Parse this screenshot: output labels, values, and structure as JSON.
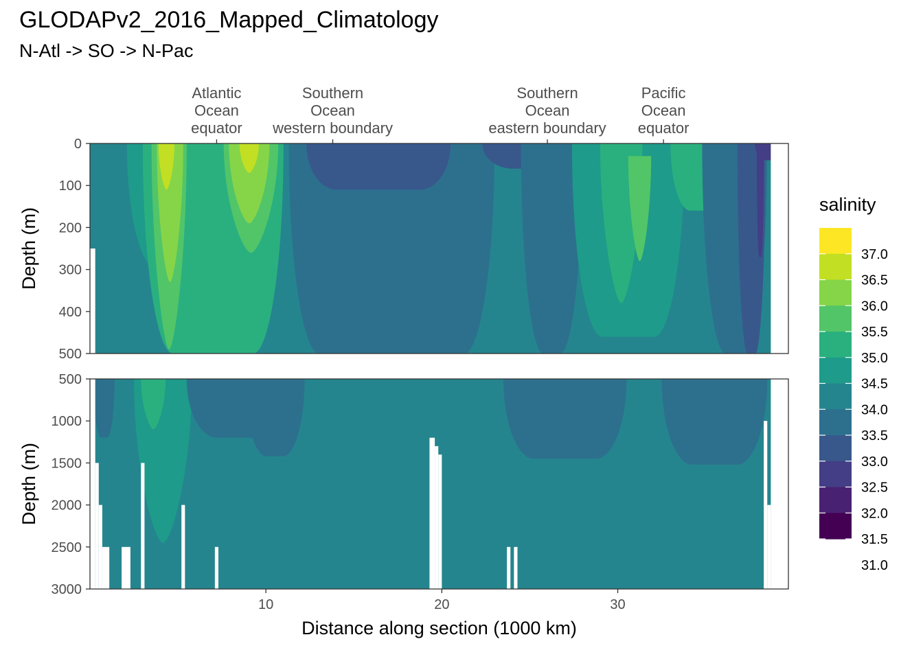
{
  "title": "GLODAPv2_2016_Mapped_Climatology",
  "subtitle": "N-Atl -> SO -> N-Pac",
  "chart_data": {
    "type": "heatmap",
    "title": "GLODAPv2_2016_Mapped_Climatology",
    "subtitle": "N-Atl -> SO -> N-Pac",
    "xlabel": "Distance along section (1000 km)",
    "ylabel": "Depth (m)",
    "xlim": [
      0,
      39.7
    ],
    "x_ticks": [
      10,
      20,
      30
    ],
    "x_tick_labels": [
      "10",
      "20",
      "30"
    ],
    "top_annotations": [
      {
        "x": 7.2,
        "lines": [
          "Atlantic",
          "Ocean",
          "equator"
        ]
      },
      {
        "x": 13.8,
        "lines": [
          "Southern",
          "Ocean",
          "western boundary"
        ]
      },
      {
        "x": 26.0,
        "lines": [
          "Southern",
          "Ocean",
          "eastern boundary"
        ]
      },
      {
        "x": 32.6,
        "lines": [
          "Pacific",
          "Ocean",
          "equator"
        ]
      }
    ],
    "panels": [
      {
        "name": "upper",
        "ylim": [
          0,
          500
        ],
        "y_ticks": [
          0,
          100,
          200,
          300,
          400,
          500
        ],
        "y_tick_labels": [
          "0",
          "100",
          "200",
          "300",
          "400",
          "500"
        ]
      },
      {
        "name": "lower",
        "ylim": [
          500,
          3000
        ],
        "y_ticks": [
          500,
          1000,
          1500,
          2000,
          2500,
          3000
        ],
        "y_tick_labels": [
          "500",
          "1000",
          "1500",
          "2000",
          "2500",
          "3000"
        ]
      }
    ],
    "legend": {
      "title": "salinity",
      "placement": "right",
      "breaks": [
        "37.0",
        "36.5",
        "36.0",
        "35.5",
        "35.0",
        "34.5",
        "34.0",
        "33.5",
        "33.0",
        "32.5",
        "32.0",
        "31.5",
        "31.0"
      ],
      "colors": [
        "#fde725",
        "#c2df23",
        "#86d549",
        "#52c569",
        "#2ab07f",
        "#1e9b8a",
        "#25858e",
        "#2d708e",
        "#38588c",
        "#433e85",
        "#482173",
        "#440154"
      ]
    },
    "features": {
      "upper": [
        {
          "kind": "band",
          "level": 35.0,
          "x": [
            2.1,
            10.3
          ],
          "depth": [
            0,
            300
          ],
          "depth_span": 300
        },
        {
          "kind": "band",
          "level": 35.5,
          "x": [
            3.0,
            11.0
          ],
          "depth": [
            0,
            500
          ],
          "depth_span": 500
        },
        {
          "kind": "tongue",
          "level": 36.0,
          "x": [
            3.5,
            5.5
          ],
          "depth": [
            0,
            490
          ],
          "depth_span": 490
        },
        {
          "kind": "tongue",
          "level": 36.5,
          "x": [
            3.8,
            5.3
          ],
          "depth": [
            0,
            330
          ],
          "depth_span": 330
        },
        {
          "kind": "core",
          "level": 37.0,
          "x": [
            3.9,
            4.8
          ],
          "depth": [
            0,
            110
          ],
          "depth_span": 110
        },
        {
          "kind": "tongue",
          "level": 36.0,
          "x": [
            7.6,
            10.7
          ],
          "depth": [
            0,
            260
          ],
          "depth_span": 260
        },
        {
          "kind": "tongue",
          "level": 36.5,
          "x": [
            7.9,
            10.2
          ],
          "depth": [
            0,
            190
          ],
          "depth_span": 190
        },
        {
          "kind": "core",
          "level": 37.0,
          "x": [
            8.5,
            9.6
          ],
          "depth": [
            0,
            70
          ],
          "depth_span": 70
        },
        {
          "kind": "band",
          "level": 34.0,
          "x": [
            11.3,
            23.0
          ],
          "depth": [
            0,
            500
          ],
          "depth_span": 500
        },
        {
          "kind": "band",
          "level": 33.5,
          "x": [
            12.3,
            20.5
          ],
          "depth": [
            0,
            110
          ],
          "depth_span": 110
        },
        {
          "kind": "band",
          "level": 33.5,
          "x": [
            22.3,
            27.6
          ],
          "depth": [
            0,
            60
          ],
          "depth_span": 60
        },
        {
          "kind": "band",
          "level": 34.0,
          "x": [
            24.5,
            28.0
          ],
          "depth": [
            0,
            500
          ],
          "depth_span": 500
        },
        {
          "kind": "band",
          "level": 35.0,
          "x": [
            27.4,
            33.8
          ],
          "depth": [
            0,
            460
          ],
          "depth_span": 460
        },
        {
          "kind": "tongue",
          "level": 35.5,
          "x": [
            29.0,
            31.4
          ],
          "depth": [
            0,
            380
          ],
          "depth_span": 380
        },
        {
          "kind": "tongue",
          "level": 36.0,
          "x": [
            30.6,
            31.9
          ],
          "depth": [
            30,
            280
          ],
          "depth_span": 250
        },
        {
          "kind": "band",
          "level": 35.5,
          "x": [
            33.0,
            36.1
          ],
          "depth": [
            0,
            160
          ],
          "depth_span": 160
        },
        {
          "kind": "band",
          "level": 34.0,
          "x": [
            34.8,
            38.5
          ],
          "depth": [
            0,
            500
          ],
          "depth_span": 500
        },
        {
          "kind": "band",
          "level": 33.5,
          "x": [
            36.8,
            38.4
          ],
          "depth": [
            0,
            500
          ],
          "depth_span": 500
        },
        {
          "kind": "band",
          "level": 33.0,
          "x": [
            37.9,
            38.3
          ],
          "depth": [
            0,
            270
          ],
          "depth_span": 270
        },
        {
          "kind": "band",
          "level": 33.0,
          "x": [
            37.8,
            39.7
          ],
          "depth": [
            0,
            40
          ],
          "depth_span": 40
        },
        {
          "kind": "core",
          "level": 31.5,
          "x": [
            39.2,
            39.7
          ],
          "depth": [
            0,
            30
          ],
          "depth_span": 30
        }
      ],
      "lower": [
        {
          "kind": "tongue",
          "level": 35.0,
          "x": [
            2.5,
            5.8
          ],
          "depth": [
            500,
            2450
          ],
          "depth_span": 1950
        },
        {
          "kind": "tongue",
          "level": 35.5,
          "x": [
            2.9,
            4.3
          ],
          "depth": [
            500,
            1100
          ],
          "depth_span": 600
        },
        {
          "kind": "band",
          "level": 34.0,
          "x": [
            5.5,
            12.0
          ],
          "depth": [
            500,
            1200
          ],
          "depth_span": 700
        },
        {
          "kind": "band",
          "level": 34.0,
          "x": [
            8.8,
            12.2
          ],
          "depth": [
            500,
            1420
          ],
          "depth_span": 920
        },
        {
          "kind": "band",
          "level": 34.0,
          "x": [
            23.5,
            30.5
          ],
          "depth": [
            500,
            1450
          ],
          "depth_span": 950
        },
        {
          "kind": "band",
          "level": 34.0,
          "x": [
            32.5,
            38.5
          ],
          "depth": [
            500,
            1520
          ],
          "depth_span": 1020
        },
        {
          "kind": "band",
          "level": 34.0,
          "x": [
            0.2,
            1.4
          ],
          "depth": [
            500,
            1200
          ],
          "depth_span": 700
        }
      ]
    },
    "no_data_columns": [
      {
        "x": [
          0.0,
          0.3
        ],
        "from_depth": 250
      },
      {
        "x": [
          0.3,
          0.5
        ],
        "from_depth": 1500
      },
      {
        "x": [
          0.5,
          0.7
        ],
        "from_depth": 2000
      },
      {
        "x": [
          0.7,
          1.1
        ],
        "from_depth": 2500
      },
      {
        "x": [
          1.8,
          2.3
        ],
        "from_depth": 2500
      },
      {
        "x": [
          2.9,
          3.1
        ],
        "from_depth": 1500
      },
      {
        "x": [
          5.2,
          5.4
        ],
        "from_depth": 2000
      },
      {
        "x": [
          7.1,
          7.3
        ],
        "from_depth": 2500
      },
      {
        "x": [
          19.3,
          19.6
        ],
        "from_depth": 1200
      },
      {
        "x": [
          19.6,
          19.8
        ],
        "from_depth": 1300
      },
      {
        "x": [
          19.8,
          20.0
        ],
        "from_depth": 1400
      },
      {
        "x": [
          23.7,
          23.9
        ],
        "from_depth": 2500
      },
      {
        "x": [
          24.1,
          24.3
        ],
        "from_depth": 2500
      },
      {
        "x": [
          38.3,
          38.5
        ],
        "from_depth": 1000
      },
      {
        "x": [
          38.5,
          38.7
        ],
        "from_depth": 2000
      },
      {
        "x": [
          38.7,
          39.7
        ],
        "from_depth": 0
      },
      {
        "x": [
          38.9,
          39.7
        ],
        "from_depth": 0
      }
    ],
    "background_level": 34.5
  }
}
